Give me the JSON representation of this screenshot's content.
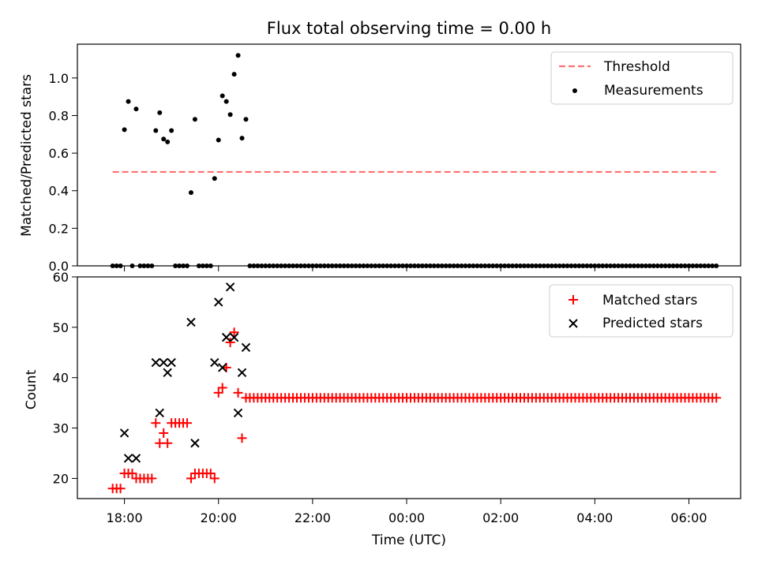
{
  "title": "Flux total observing time = 0.00 h",
  "colors": {
    "threshold": "#ff6f6f",
    "measurement": "#000000",
    "matched": "#ff0000",
    "predicted": "#000000"
  },
  "chart_data": [
    {
      "type": "scatter",
      "title": "Flux total observing time = 0.00 h",
      "ylabel": "Matched/Predicted stars",
      "xlim_hours": [
        17.0,
        31.1
      ],
      "ylim": [
        0,
        1.18
      ],
      "yticks": [
        "0.0",
        "0.2",
        "0.4",
        "0.6",
        "0.8",
        "1.0"
      ],
      "yticks_values": [
        0,
        0.2,
        0.4,
        0.6,
        0.8,
        1.0
      ],
      "legend": {
        "position": "top-right",
        "threshold_label": "Threshold",
        "measurements_label": "Measurements"
      },
      "threshold": {
        "y": 0.5,
        "x_start": "17:45",
        "x_end": "06:35"
      },
      "series": [
        {
          "name": "Measurements",
          "points": [
            [
              "17:45",
              0
            ],
            [
              "17:50",
              0
            ],
            [
              "17:55",
              0
            ],
            [
              "18:00",
              0.725
            ],
            [
              "18:05",
              0.875
            ],
            [
              "18:10",
              0
            ],
            [
              "18:15",
              0.835
            ],
            [
              "18:20",
              0
            ],
            [
              "18:25",
              0
            ],
            [
              "18:30",
              0
            ],
            [
              "18:35",
              0
            ],
            [
              "18:40",
              0.72
            ],
            [
              "18:45",
              0.815
            ],
            [
              "18:50",
              0.675
            ],
            [
              "18:55",
              0.66
            ],
            [
              "19:00",
              0.72
            ],
            [
              "19:05",
              0
            ],
            [
              "19:10",
              0
            ],
            [
              "19:15",
              0
            ],
            [
              "19:20",
              0
            ],
            [
              "19:25",
              0.39
            ],
            [
              "19:30",
              0.78
            ],
            [
              "19:35",
              0
            ],
            [
              "19:40",
              0
            ],
            [
              "19:45",
              0
            ],
            [
              "19:50",
              0
            ],
            [
              "19:55",
              0.465
            ],
            [
              "20:00",
              0.67
            ],
            [
              "20:05",
              0.905
            ],
            [
              "20:10",
              0.875
            ],
            [
              "20:15",
              0.805
            ],
            [
              "20:20",
              1.02
            ],
            [
              "20:25",
              1.12
            ],
            [
              "20:30",
              0.68
            ],
            [
              "20:35",
              0.78
            ],
            [
              "20:40",
              0
            ],
            [
              "06:35",
              0
            ]
          ],
          "constant_run": {
            "from": "20:40",
            "to": "06:35",
            "step_minutes": 5,
            "value": 0
          }
        }
      ]
    },
    {
      "type": "scatter",
      "xlabel": "Time (UTC)",
      "ylabel": "Count",
      "xlim_hours": [
        17.0,
        31.1
      ],
      "ylim": [
        16,
        60
      ],
      "yticks": [
        "20",
        "30",
        "40",
        "50",
        "60"
      ],
      "yticks_values": [
        20,
        30,
        40,
        50,
        60
      ],
      "xticks": [
        "18:00",
        "20:00",
        "22:00",
        "00:00",
        "02:00",
        "04:00",
        "06:00"
      ],
      "xticks_values": [
        18,
        20,
        22,
        24,
        26,
        28,
        30
      ],
      "legend": {
        "position": "top-right",
        "matched_label": "Matched stars",
        "predicted_label": "Predicted stars"
      },
      "series": [
        {
          "name": "Matched stars",
          "marker": "plus",
          "points": [
            [
              "17:45",
              18
            ],
            [
              "17:50",
              18
            ],
            [
              "17:55",
              18
            ],
            [
              "18:00",
              21
            ],
            [
              "18:05",
              21
            ],
            [
              "18:10",
              21
            ],
            [
              "18:15",
              20
            ],
            [
              "18:20",
              20
            ],
            [
              "18:25",
              20
            ],
            [
              "18:30",
              20
            ],
            [
              "18:35",
              20
            ],
            [
              "18:40",
              31
            ],
            [
              "18:45",
              27
            ],
            [
              "18:50",
              29
            ],
            [
              "18:55",
              27
            ],
            [
              "19:00",
              31
            ],
            [
              "19:05",
              31
            ],
            [
              "19:10",
              31
            ],
            [
              "19:15",
              31
            ],
            [
              "19:20",
              31
            ],
            [
              "19:25",
              20
            ],
            [
              "19:30",
              21
            ],
            [
              "19:35",
              21
            ],
            [
              "19:40",
              21
            ],
            [
              "19:45",
              21
            ],
            [
              "19:50",
              21
            ],
            [
              "19:55",
              20
            ],
            [
              "20:00",
              37
            ],
            [
              "20:05",
              38
            ],
            [
              "20:10",
              42
            ],
            [
              "20:15",
              47
            ],
            [
              "20:20",
              49
            ],
            [
              "20:25",
              37
            ],
            [
              "20:30",
              28
            ],
            [
              "20:35",
              36
            ]
          ],
          "constant_run": {
            "from": "20:40",
            "to": "06:35",
            "step_minutes": 5,
            "value": 36
          }
        },
        {
          "name": "Predicted stars",
          "marker": "x",
          "points": [
            [
              "18:00",
              29
            ],
            [
              "18:05",
              24
            ],
            [
              "18:15",
              24
            ],
            [
              "18:40",
              43
            ],
            [
              "18:45",
              33
            ],
            [
              "18:50",
              43
            ],
            [
              "18:55",
              41
            ],
            [
              "19:00",
              43
            ],
            [
              "19:25",
              51
            ],
            [
              "19:30",
              27
            ],
            [
              "19:55",
              43
            ],
            [
              "20:00",
              55
            ],
            [
              "20:05",
              42
            ],
            [
              "20:10",
              48
            ],
            [
              "20:15",
              58
            ],
            [
              "20:20",
              48
            ],
            [
              "20:25",
              33
            ],
            [
              "20:30",
              41
            ],
            [
              "20:35",
              46
            ]
          ]
        }
      ]
    }
  ]
}
